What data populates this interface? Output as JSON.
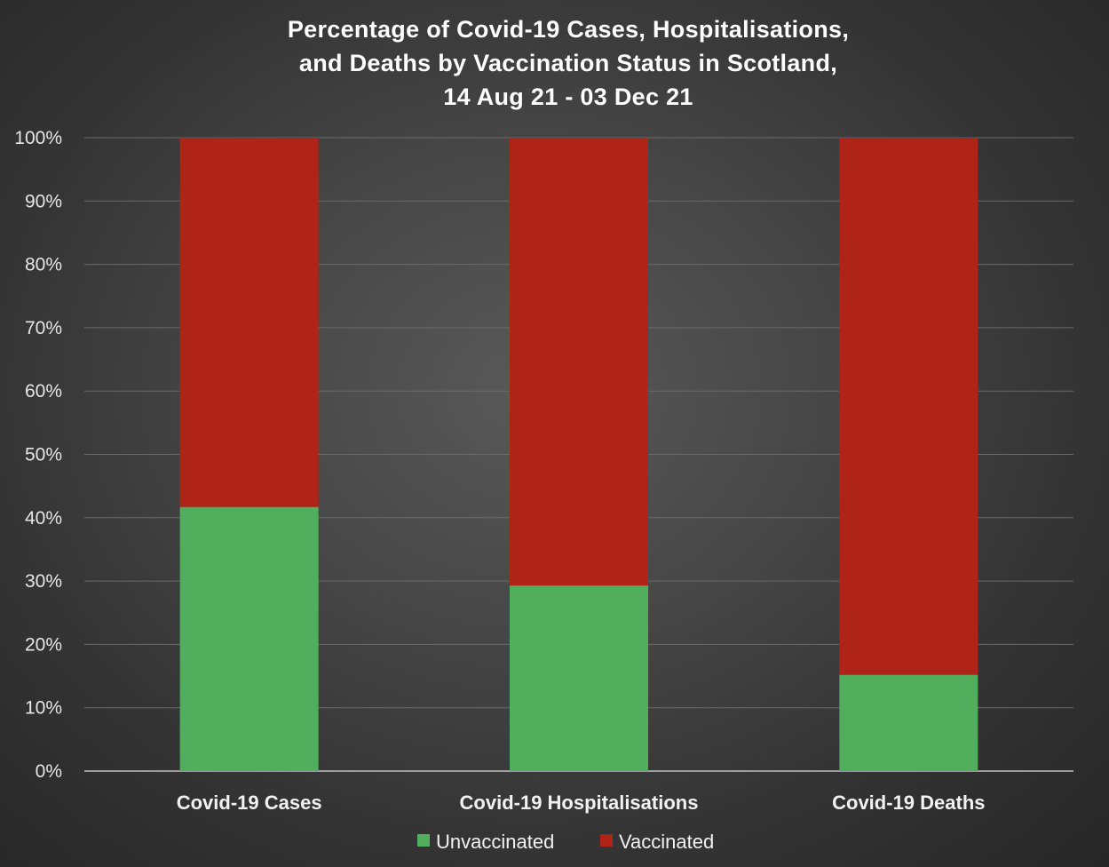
{
  "chart_data": {
    "type": "bar",
    "stacked": true,
    "title_lines": [
      "Percentage of Covid-19 Cases, Hospitalisations,",
      "and Deaths by Vaccination Status in Scotland,",
      "14 Aug 21 - 03 Dec 21"
    ],
    "categories": [
      "Covid-19 Cases",
      "Covid-19 Hospitalisations",
      "Covid-19 Deaths"
    ],
    "series": [
      {
        "name": "Unvaccinated",
        "color": "#50ae5c",
        "values": [
          41.7,
          29.3,
          15.2
        ]
      },
      {
        "name": "Vaccinated",
        "color": "#b02418",
        "values": [
          58.3,
          70.7,
          84.8
        ]
      }
    ],
    "y_ticks": [
      "0%",
      "10%",
      "20%",
      "30%",
      "40%",
      "50%",
      "60%",
      "70%",
      "80%",
      "90%",
      "100%"
    ],
    "ylim": [
      0,
      100
    ],
    "grid": true,
    "legend_position": "bottom"
  }
}
